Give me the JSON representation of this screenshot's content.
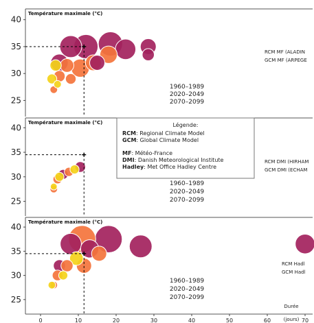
{
  "chart_data": {
    "type": "scatter",
    "x_unit": "Durée (jours)",
    "x_ticks": [
      0,
      10,
      20,
      30,
      40,
      50,
      60,
      70
    ],
    "y_ticks": [
      25,
      30,
      35,
      40
    ],
    "xlim": [
      -4,
      72
    ],
    "ylim": [
      22,
      42
    ],
    "colors": {
      "1960-1989": "#f4d31a",
      "2020-2049": "#f4743c",
      "2070-2099": "#a3225d"
    },
    "panels": [
      {
        "title": "Température maximale (°C)",
        "model_text": [
          "RCM MF (ALADIN",
          "GCM MF (ARPEGE"
        ],
        "periods": [
          "1960–1989",
          "2020–2049",
          "2070–2099"
        ],
        "crosshair": {
          "x": 11.5,
          "y": 35
        },
        "points": [
          {
            "period": "2070-2099",
            "x": 18.5,
            "y": 35.5,
            "r": 3.2
          },
          {
            "period": "2070-2099",
            "x": 12,
            "y": 35,
            "r": 3.2
          },
          {
            "period": "2070-2099",
            "x": 8,
            "y": 35,
            "r": 2.9
          },
          {
            "period": "2070-2099",
            "x": 22.5,
            "y": 34.5,
            "r": 2.7
          },
          {
            "period": "2070-2099",
            "x": 5,
            "y": 32,
            "r": 2.3
          },
          {
            "period": "2070-2099",
            "x": 28.5,
            "y": 35,
            "r": 2.1
          },
          {
            "period": "2070-2099",
            "x": 28.5,
            "y": 33.5,
            "r": 1.6
          },
          {
            "period": "2070-2099",
            "x": 15,
            "y": 32,
            "r": 2.0
          },
          {
            "period": "2020-2049",
            "x": 18,
            "y": 33.5,
            "r": 2.3
          },
          {
            "period": "2020-2049",
            "x": 14,
            "y": 32,
            "r": 2.1
          },
          {
            "period": "2020-2049",
            "x": 10.5,
            "y": 31,
            "r": 2.4
          },
          {
            "period": "2020-2049",
            "x": 7,
            "y": 31.5,
            "r": 1.8
          },
          {
            "period": "2020-2049",
            "x": 8,
            "y": 29,
            "r": 1.4
          },
          {
            "period": "2020-2049",
            "x": 5,
            "y": 29.5,
            "r": 1.5
          },
          {
            "period": "2020-2049",
            "x": 3.5,
            "y": 27,
            "r": 1.0
          },
          {
            "period": "1960-1989",
            "x": 4,
            "y": 31.5,
            "r": 1.5
          },
          {
            "period": "1960-1989",
            "x": 3,
            "y": 29,
            "r": 1.3
          },
          {
            "period": "1960-1989",
            "x": 4.5,
            "y": 28,
            "r": 1.0
          }
        ]
      },
      {
        "title": "Température maximale (°C)",
        "model_text": [
          "RCM DMI (HIRHAM",
          "GCM DMI (ECHAM"
        ],
        "periods": [
          "1960–1989",
          "2020–2049",
          "2070–2099"
        ],
        "crosshair": {
          "x": 11.5,
          "y": 34.5
        },
        "points": [
          {
            "period": "2070-2099",
            "x": 10.5,
            "y": 32,
            "r": 1.4
          },
          {
            "period": "2070-2099",
            "x": 6,
            "y": 30.5,
            "r": 1.3
          },
          {
            "period": "2020-2049",
            "x": 7.5,
            "y": 31,
            "r": 1.2
          },
          {
            "period": "2020-2049",
            "x": 4.5,
            "y": 29.5,
            "r": 1.2
          },
          {
            "period": "2020-2049",
            "x": 3.5,
            "y": 27.5,
            "r": 1.0
          },
          {
            "period": "1960-1989",
            "x": 9,
            "y": 31.5,
            "r": 1.2
          },
          {
            "period": "1960-1989",
            "x": 5,
            "y": 30,
            "r": 1.2
          },
          {
            "period": "1960-1989",
            "x": 3.5,
            "y": 28,
            "r": 0.9
          }
        ]
      },
      {
        "title": "Température maximale (°C)",
        "model_text": [
          "RCM  Hadl",
          "GCM Hadl"
        ],
        "periods": [
          "1960–1989",
          "2020–2049",
          "2070–2099"
        ],
        "crosshair": {
          "x": 11.5,
          "y": 34.5
        },
        "points": [
          {
            "period": "2070-2099",
            "x": 18,
            "y": 37.5,
            "r": 3.6
          },
          {
            "period": "2070-2099",
            "x": 26.5,
            "y": 36,
            "r": 3.0
          },
          {
            "period": "2070-2099",
            "x": 8,
            "y": 36.5,
            "r": 2.8
          },
          {
            "period": "2070-2099",
            "x": 13,
            "y": 35.5,
            "r": 2.4
          },
          {
            "period": "2070-2099",
            "x": 70,
            "y": 36.5,
            "r": 2.6
          },
          {
            "period": "2070-2099",
            "x": 5,
            "y": 32,
            "r": 1.6
          },
          {
            "period": "2020-2049",
            "x": 11,
            "y": 37.5,
            "r": 3.6
          },
          {
            "period": "2020-2049",
            "x": 15.5,
            "y": 34.5,
            "r": 2.0
          },
          {
            "period": "2020-2049",
            "x": 11.5,
            "y": 32,
            "r": 2.0
          },
          {
            "period": "2020-2049",
            "x": 7,
            "y": 32,
            "r": 1.6
          },
          {
            "period": "2020-2049",
            "x": 4.5,
            "y": 30,
            "r": 1.4
          },
          {
            "period": "2020-2049",
            "x": 3.5,
            "y": 28,
            "r": 1.0
          },
          {
            "period": "1960-1989",
            "x": 9.5,
            "y": 33.5,
            "r": 1.8
          },
          {
            "period": "1960-1989",
            "x": 6,
            "y": 30,
            "r": 1.2
          },
          {
            "period": "1960-1989",
            "x": 3,
            "y": 28,
            "r": 1.0
          }
        ]
      }
    ],
    "legend": {
      "title": "Légende:",
      "items": [
        {
          "abbr": "RCM",
          "text": ": Regional Climate Model"
        },
        {
          "abbr": "GCM",
          "text": ": Global Climate Model"
        },
        {
          "abbr": "MF",
          "text": ": Météo-France"
        },
        {
          "abbr": "DMI",
          "text": ": Danish Meteorological Institute"
        },
        {
          "abbr": "Hadley",
          "text": ": Met Office Hadley Centre"
        }
      ]
    },
    "x_axis_label": [
      "Durée",
      "(jours)"
    ]
  }
}
